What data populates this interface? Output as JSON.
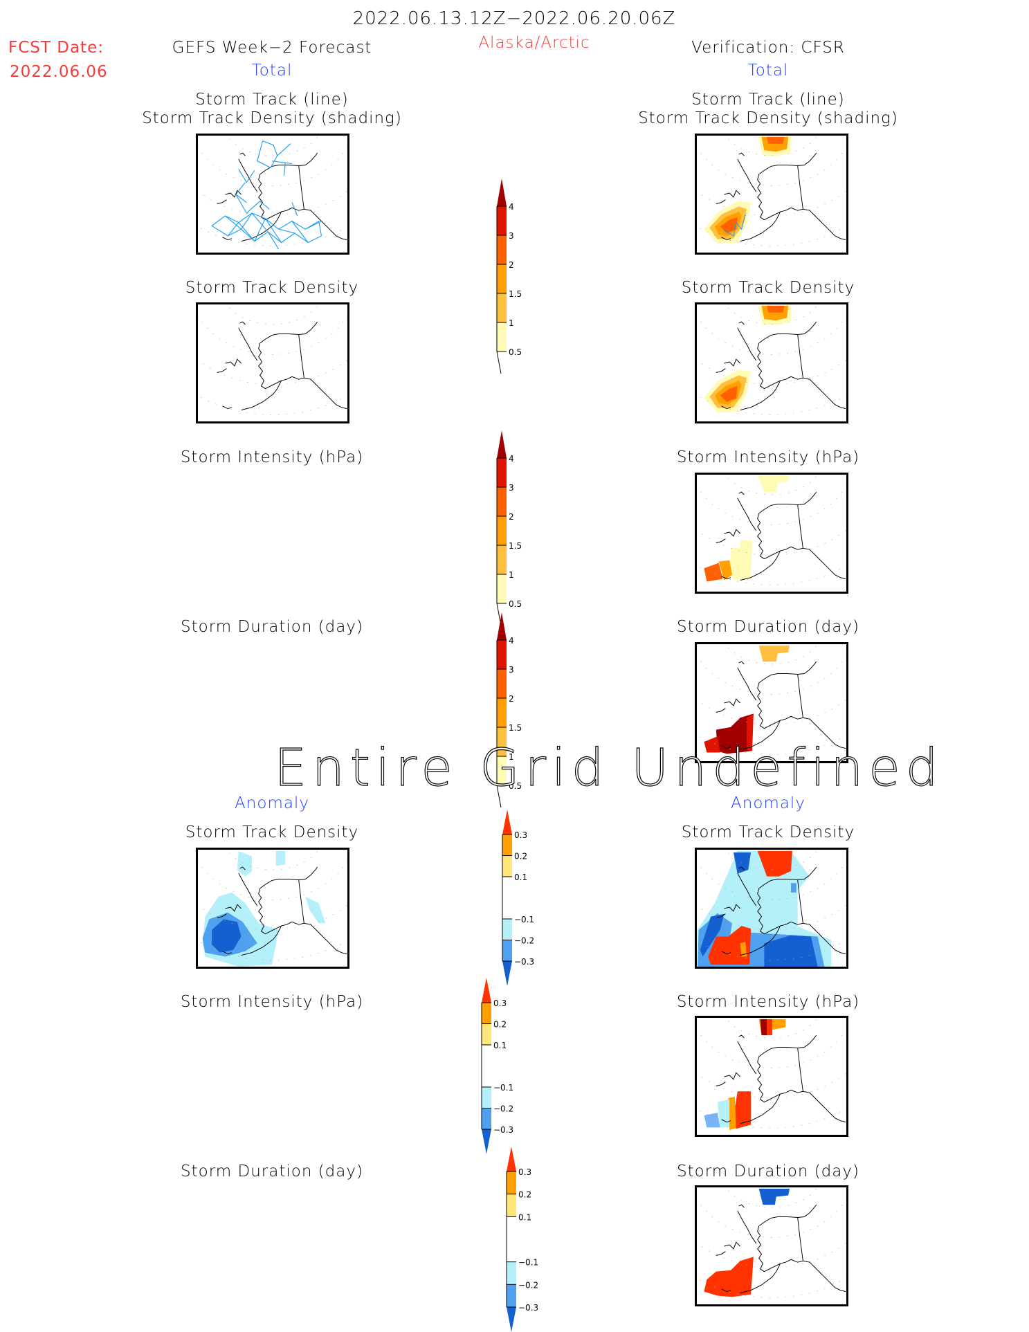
{
  "header": {
    "period": "2022.06.13.12Z−2022.06.20.06Z",
    "region": "Alaska/Arctic",
    "fcst_label": "FCST Date:",
    "fcst_date": "2022.06.06",
    "left_title": "GEFS Week−2 Forecast",
    "right_title": "Verification: CFSR",
    "total_label": "Total",
    "anomaly_label": "Anomaly"
  },
  "panels": {
    "track_line": [
      "Storm Track (line)",
      "Storm Track Density (shading)"
    ],
    "track_density": "Storm Track Density",
    "intensity": "Storm Intensity (hPa)",
    "duration": "Storm Duration (day)"
  },
  "overlay_message": "Entire Grid Undefined",
  "colors": {
    "track_line": "#1ea0f0",
    "coast": "#000000",
    "text_red": "#f03c3c",
    "text_blue": "#1e3cff"
  },
  "chart_data": [
    {
      "type": "heatmap",
      "title": "Total",
      "colorbar": {
        "levels": [
          "0.5",
          "1",
          "1.5",
          "2",
          "3",
          "4"
        ],
        "colors": [
          "#fffab4",
          "#ffc040",
          "#ffa000",
          "#ff6000",
          "#e01400",
          "#a00000"
        ],
        "extend": "max"
      },
      "panels": [
        {
          "column": "GEFS Week-2 Forecast",
          "field": "Storm Track (line) / Storm Track Density (shading)",
          "shading": "none",
          "tracks": "many tracks over Bering Sea, Gulf of Alaska and Arctic"
        },
        {
          "column": "GEFS Week-2 Forecast",
          "field": "Storm Track Density",
          "shading": "none"
        },
        {
          "column": "GEFS Week-2 Forecast",
          "field": "Storm Intensity (hPa)",
          "shading": "undefined"
        },
        {
          "column": "GEFS Week-2 Forecast",
          "field": "Storm Duration (day)",
          "shading": "undefined"
        },
        {
          "column": "Verification: CFSR",
          "field": "Storm Track (line) / Storm Track Density (shading)",
          "max_level": "2-3",
          "regions": [
            "Aleutians/Bering Sea",
            "Arctic Ocean north"
          ]
        },
        {
          "column": "Verification: CFSR",
          "field": "Storm Track Density",
          "max_level": "2-3",
          "regions": [
            "Aleutians/Bering Sea",
            "Arctic Ocean north"
          ]
        },
        {
          "column": "Verification: CFSR",
          "field": "Storm Intensity (hPa)",
          "max_level": "2-3",
          "regions": [
            "Aleutians",
            "Arctic Ocean north"
          ]
        },
        {
          "column": "Verification: CFSR",
          "field": "Storm Duration (day)",
          "max_level": ">4",
          "regions": [
            "Aleutians",
            "Arctic Ocean north"
          ]
        }
      ]
    },
    {
      "type": "heatmap",
      "title": "Anomaly",
      "colorbar": {
        "levels": [
          "-0.3",
          "-0.2",
          "-0.1",
          "0.1",
          "0.2",
          "0.3"
        ],
        "colors": [
          "#1460d0",
          "#50a0f0",
          "#b4f0fa",
          "#ffffff",
          "#ffe678",
          "#ffa000",
          "#ff3200"
        ],
        "extend": "both"
      },
      "panels": [
        {
          "column": "GEFS Week-2 Forecast",
          "field": "Storm Track Density",
          "min_level": "<-0.3",
          "regions": [
            "Bering Sea (negative)"
          ]
        },
        {
          "column": "GEFS Week-2 Forecast",
          "field": "Storm Intensity (hPa)",
          "shading": "undefined"
        },
        {
          "column": "GEFS Week-2 Forecast",
          "field": "Storm Duration (day)",
          "shading": "undefined"
        },
        {
          "column": "Verification: CFSR",
          "field": "Storm Track Density",
          "range": "<-0.3 to >0.3"
        },
        {
          "column": "Verification: CFSR",
          "field": "Storm Intensity (hPa)",
          "range": "-0.3 to >0.3"
        },
        {
          "column": "Verification: CFSR",
          "field": "Storm Duration (day)",
          "range": "<-0.3 to >0.3"
        }
      ]
    }
  ]
}
